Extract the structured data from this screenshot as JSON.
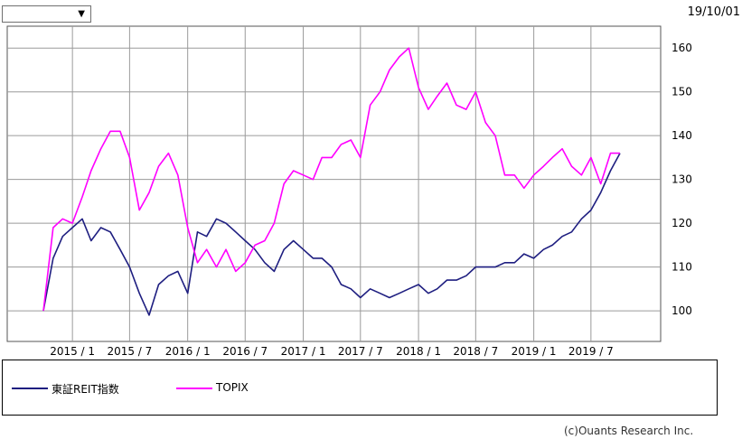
{
  "controls": {
    "period_select_value": "",
    "period_arrow": "▼",
    "date": "19/10/01"
  },
  "chart_data": {
    "type": "line",
    "x_tick_labels": [
      "2015/1",
      "2015/7",
      "2016/1",
      "2016/7",
      "2017/1",
      "2017/7",
      "2018/1",
      "2018/7",
      "2019/1",
      "2019/7"
    ],
    "x": [
      "2014-10-01",
      "2014-11-01",
      "2014-12-01",
      "2015-01-01",
      "2015-02-01",
      "2015-03-01",
      "2015-04-01",
      "2015-05-01",
      "2015-06-01",
      "2015-07-01",
      "2015-08-01",
      "2015-09-01",
      "2015-10-01",
      "2015-11-01",
      "2015-12-01",
      "2016-01-01",
      "2016-02-01",
      "2016-03-01",
      "2016-04-01",
      "2016-05-01",
      "2016-06-01",
      "2016-07-01",
      "2016-08-01",
      "2016-09-01",
      "2016-10-01",
      "2016-11-01",
      "2016-12-01",
      "2017-01-01",
      "2017-02-01",
      "2017-03-01",
      "2017-04-01",
      "2017-05-01",
      "2017-06-01",
      "2017-07-01",
      "2017-08-01",
      "2017-09-01",
      "2017-10-01",
      "2017-11-01",
      "2017-12-01",
      "2018-01-01",
      "2018-02-01",
      "2018-03-01",
      "2018-04-01",
      "2018-05-01",
      "2018-06-01",
      "2018-07-01",
      "2018-08-01",
      "2018-09-01",
      "2018-10-01",
      "2018-11-01",
      "2018-12-01",
      "2019-01-01",
      "2019-02-01",
      "2019-03-01",
      "2019-04-01",
      "2019-05-01",
      "2019-06-01",
      "2019-07-01",
      "2019-08-01",
      "2019-09-01",
      "2019-10-01"
    ],
    "series": [
      {
        "name": "東証REIT指数",
        "color": "#1e1e80",
        "values": [
          100,
          112,
          117,
          119,
          121,
          116,
          119,
          118,
          114,
          110,
          104,
          99,
          106,
          108,
          109,
          104,
          118,
          117,
          121,
          120,
          118,
          116,
          114,
          111,
          109,
          114,
          116,
          114,
          112,
          112,
          110,
          106,
          105,
          103,
          105,
          104,
          103,
          104,
          105,
          106,
          104,
          105,
          107,
          107,
          108,
          110,
          110,
          110,
          111,
          111,
          113,
          112,
          114,
          115,
          117,
          118,
          121,
          123,
          127,
          132,
          136
        ]
      },
      {
        "name": "TOPIX",
        "color": "#ff00ff",
        "values": [
          100,
          119,
          121,
          120,
          126,
          132,
          137,
          141,
          141,
          135,
          123,
          127,
          133,
          136,
          131,
          119,
          111,
          114,
          110,
          114,
          109,
          111,
          115,
          116,
          120,
          129,
          132,
          131,
          130,
          135,
          135,
          138,
          139,
          135,
          147,
          150,
          155,
          158,
          160,
          151,
          146,
          149,
          152,
          147,
          146,
          150,
          143,
          140,
          131,
          131,
          128,
          131,
          133,
          135,
          137,
          133,
          131,
          135,
          129,
          136,
          136
        ]
      }
    ],
    "ylim": [
      93,
      165
    ],
    "yticks": [
      100,
      110,
      120,
      130,
      140,
      150,
      160
    ],
    "grid": true,
    "legend": "bottom"
  },
  "legend": [
    {
      "label": "東証REIT指数",
      "color": "#1e1e80"
    },
    {
      "label": "TOPIX",
      "color": "#ff00ff"
    }
  ],
  "footer": {
    "copyright": "(c)Ouants Research Inc."
  }
}
